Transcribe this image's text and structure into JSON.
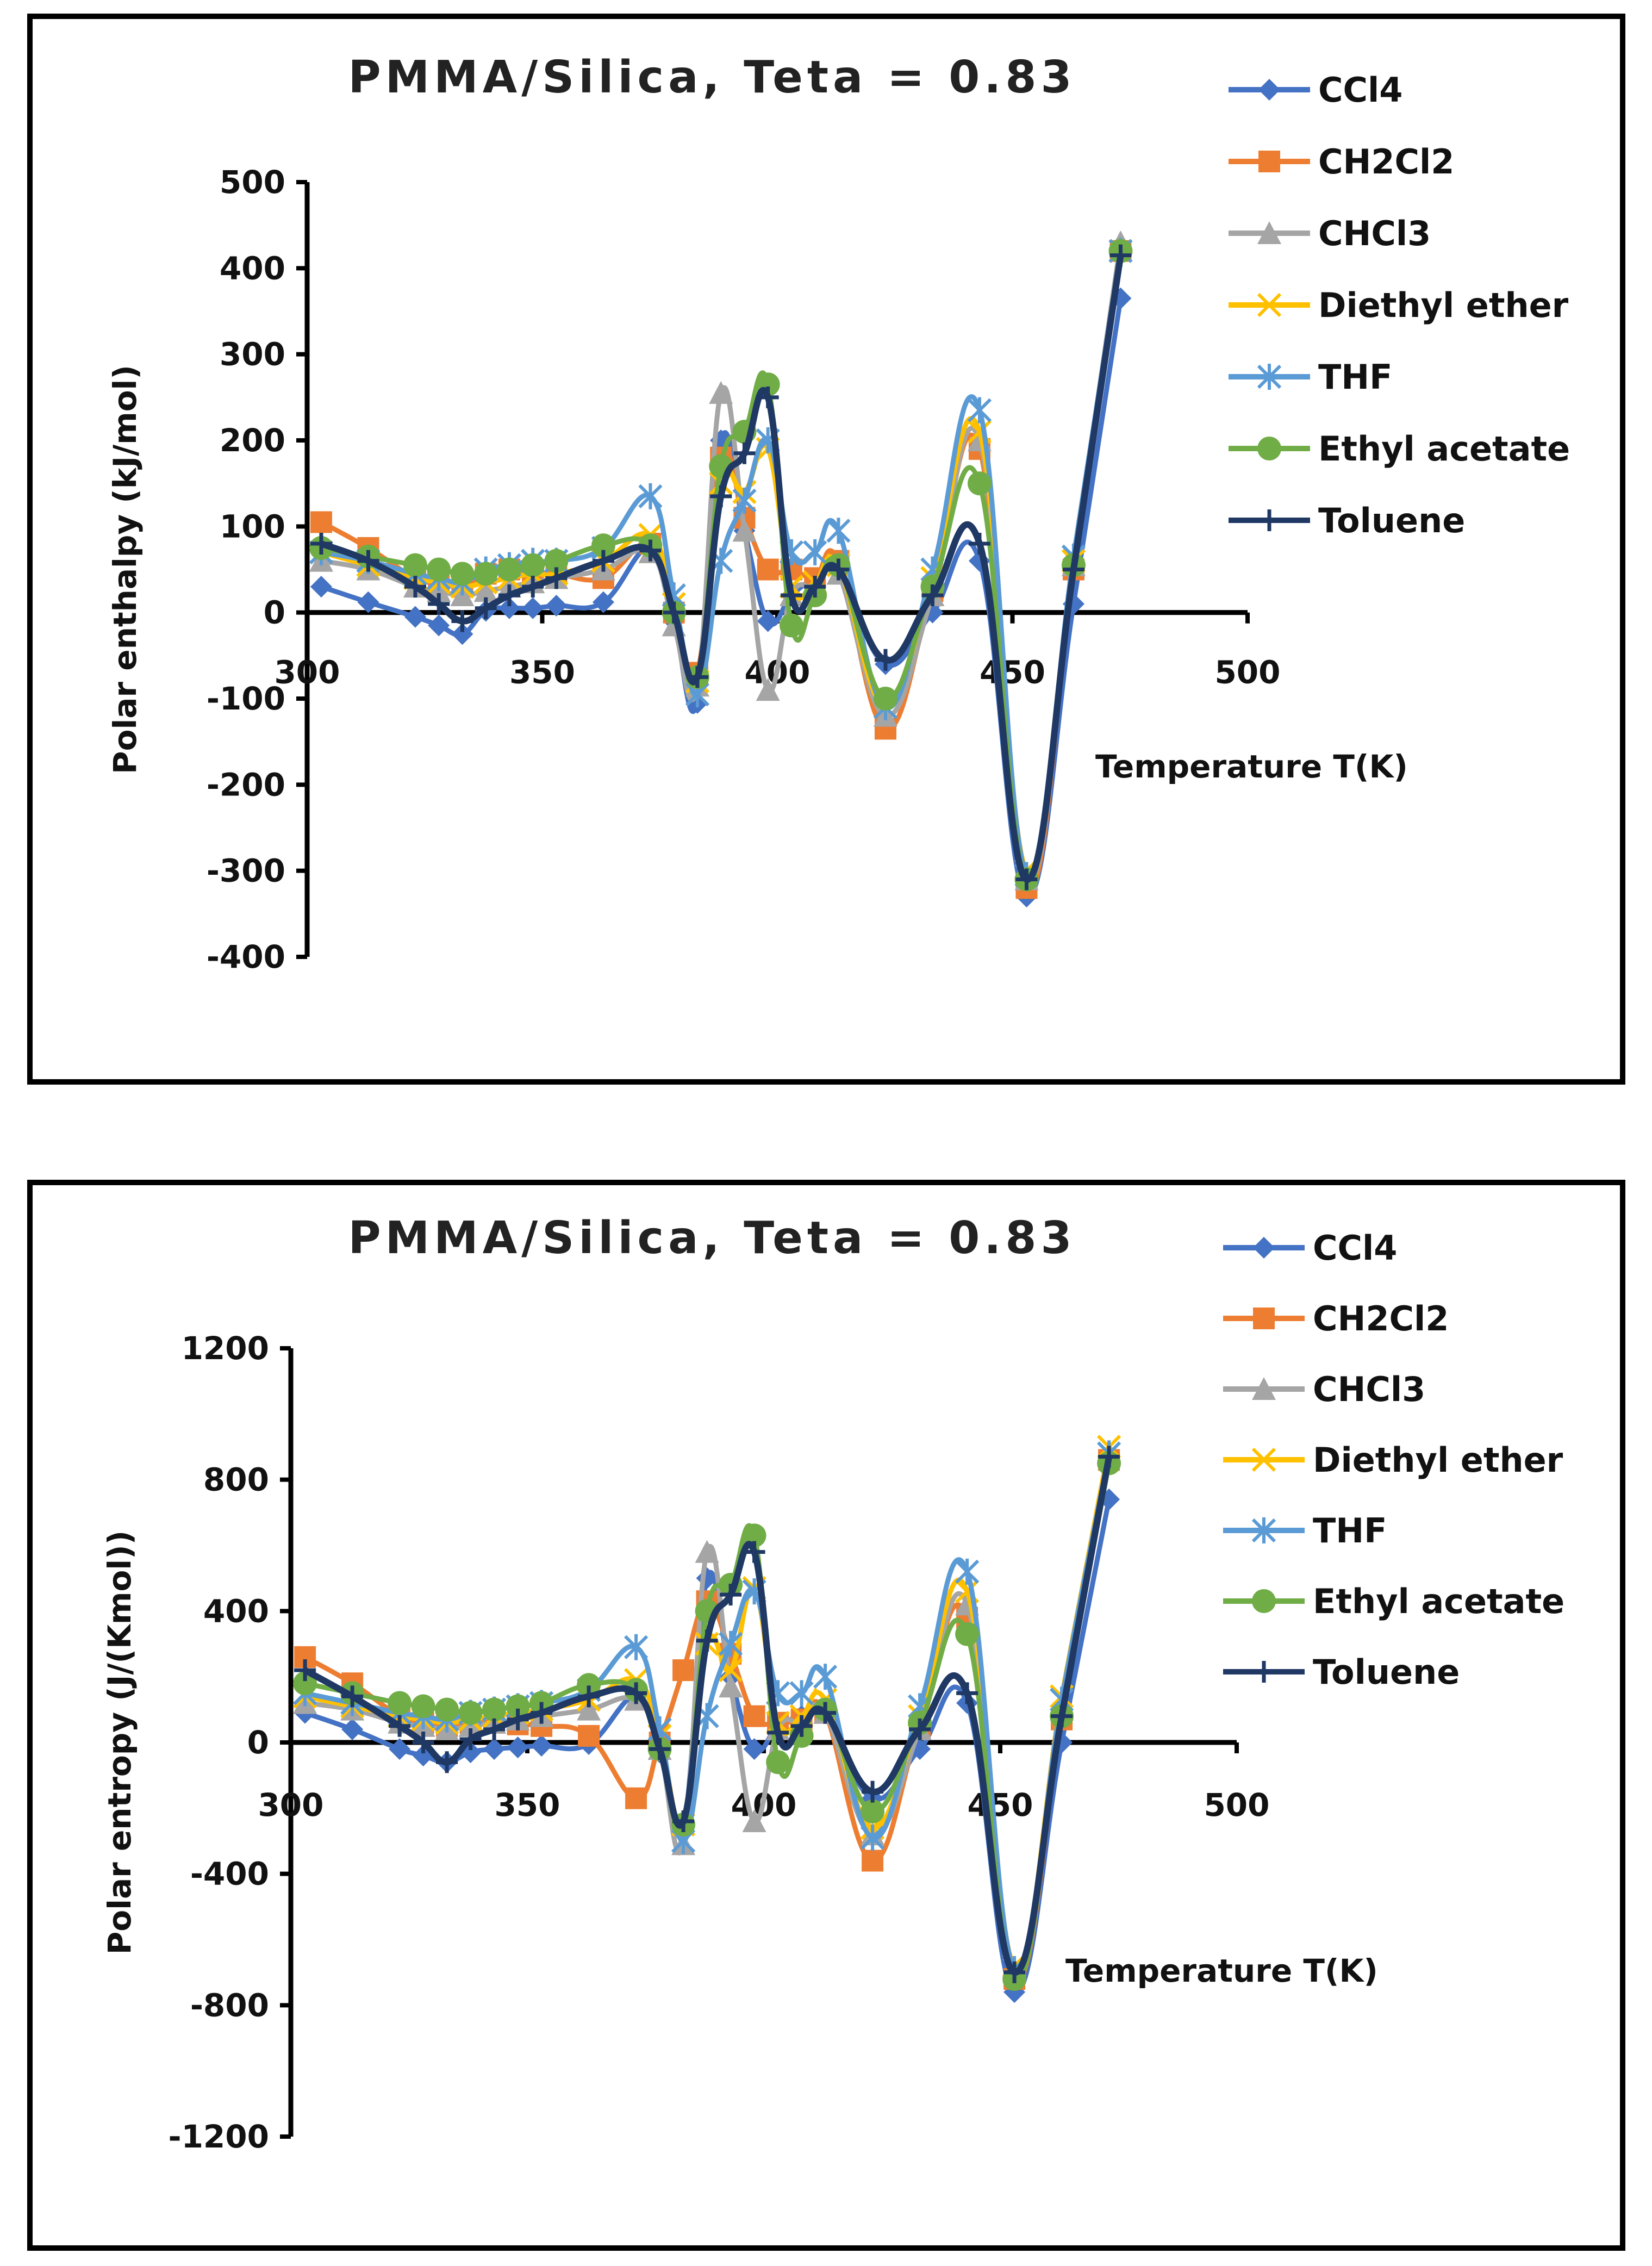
{
  "chart_data": [
    {
      "type": "line",
      "title": "PMMA/Silica, Teta = 0.83",
      "xlabel": "Temperature T(K)",
      "ylabel": "Polar enthalpy (kJ/mol)",
      "xlim": [
        300,
        500
      ],
      "ylim": [
        -400,
        500
      ],
      "x_ticks": [
        "300",
        "350",
        "400",
        "450",
        "500"
      ],
      "y_ticks": [
        "500",
        "400",
        "300",
        "200",
        "100",
        "0",
        "-100",
        "-200",
        "-300",
        "-400"
      ],
      "series": [
        {
          "name": "CCl4",
          "color": "#4472C4",
          "marker": "diamond",
          "x": [
            303,
            313,
            323,
            328,
            333,
            338,
            343,
            348,
            353,
            363,
            373,
            378,
            383,
            388,
            393,
            398,
            403,
            408,
            413,
            423,
            433,
            443,
            453,
            463,
            473
          ],
          "y": [
            30,
            12,
            -5,
            -15,
            -25,
            2,
            5,
            5,
            8,
            12,
            75,
            -10,
            -105,
            200,
            95,
            -10,
            20,
            40,
            50,
            -60,
            0,
            60,
            -330,
            10,
            365
          ]
        },
        {
          "name": "CH2Cl2",
          "color": "#ED7D31",
          "marker": "square",
          "x": [
            303,
            313,
            323,
            328,
            333,
            338,
            343,
            348,
            353,
            363,
            373,
            378,
            383,
            388,
            393,
            398,
            403,
            408,
            413,
            423,
            433,
            443,
            453,
            463,
            473
          ],
          "y": [
            105,
            75,
            40,
            35,
            30,
            45,
            50,
            45,
            45,
            40,
            80,
            0,
            -70,
            180,
            110,
            50,
            50,
            40,
            60,
            -135,
            25,
            190,
            -320,
            50,
            420
          ]
        },
        {
          "name": "CHCl3",
          "color": "#A5A5A5",
          "marker": "triangle",
          "x": [
            303,
            313,
            323,
            328,
            333,
            338,
            343,
            348,
            353,
            363,
            373,
            378,
            383,
            388,
            393,
            398,
            403,
            408,
            413,
            423,
            433,
            443,
            453,
            463,
            473
          ],
          "y": [
            60,
            50,
            30,
            25,
            20,
            25,
            30,
            35,
            40,
            50,
            70,
            -15,
            -85,
            255,
            95,
            -90,
            20,
            30,
            45,
            -120,
            20,
            200,
            -310,
            55,
            430
          ]
        },
        {
          "name": "Diethyl ether",
          "color": "#FFC000",
          "marker": "x",
          "x": [
            303,
            313,
            323,
            328,
            333,
            338,
            343,
            348,
            353,
            363,
            373,
            378,
            383,
            388,
            393,
            398,
            403,
            408,
            413,
            423,
            433,
            443,
            453,
            463,
            473
          ],
          "y": [
            70,
            55,
            40,
            35,
            30,
            35,
            40,
            45,
            45,
            60,
            90,
            10,
            -80,
            150,
            140,
            190,
            30,
            35,
            55,
            -110,
            40,
            210,
            -300,
            60,
            420
          ]
        },
        {
          "name": "THF",
          "color": "#5B9BD5",
          "marker": "asterisk",
          "x": [
            303,
            313,
            323,
            328,
            333,
            338,
            343,
            348,
            353,
            363,
            373,
            378,
            383,
            388,
            393,
            398,
            403,
            408,
            413,
            423,
            433,
            443,
            453,
            463,
            473
          ],
          "y": [
            70,
            60,
            45,
            40,
            35,
            50,
            55,
            60,
            60,
            75,
            135,
            20,
            -95,
            60,
            130,
            200,
            70,
            70,
            95,
            -110,
            50,
            235,
            -305,
            65,
            420
          ]
        },
        {
          "name": "Ethyl acetate",
          "color": "#70AD47",
          "marker": "circle",
          "x": [
            303,
            313,
            323,
            328,
            333,
            338,
            343,
            348,
            353,
            363,
            373,
            378,
            383,
            388,
            393,
            398,
            403,
            408,
            413,
            423,
            433,
            443,
            453,
            463,
            473
          ],
          "y": [
            75,
            65,
            55,
            50,
            45,
            45,
            50,
            55,
            60,
            78,
            78,
            0,
            -75,
            170,
            210,
            265,
            -15,
            20,
            55,
            -100,
            30,
            150,
            -310,
            55,
            420
          ]
        },
        {
          "name": "Toluene",
          "color": "#1F3864",
          "marker": "plus",
          "x": [
            303,
            313,
            323,
            328,
            333,
            338,
            343,
            348,
            353,
            363,
            373,
            378,
            383,
            388,
            393,
            398,
            403,
            408,
            413,
            423,
            433,
            443,
            453,
            463,
            473
          ],
          "y": [
            80,
            60,
            30,
            10,
            -10,
            5,
            20,
            30,
            40,
            60,
            72,
            0,
            -75,
            135,
            185,
            250,
            20,
            30,
            50,
            -55,
            20,
            80,
            -310,
            50,
            415
          ]
        }
      ]
    },
    {
      "type": "line",
      "title": "PMMA/Silica, Teta = 0.83",
      "xlabel": "Temperature T(K)",
      "ylabel": "Polar entropy (J/(Kmol))",
      "xlim": [
        300,
        500
      ],
      "ylim": [
        -1200,
        1200
      ],
      "x_ticks": [
        "300",
        "350",
        "400",
        "450",
        "500"
      ],
      "y_ticks": [
        "1200",
        "800",
        "400",
        "0",
        "-400",
        "-800",
        "-1200"
      ],
      "series": [
        {
          "name": "CCl4",
          "color": "#4472C4",
          "marker": "diamond",
          "x": [
            303,
            313,
            323,
            328,
            333,
            338,
            343,
            348,
            353,
            363,
            373,
            378,
            383,
            388,
            393,
            398,
            403,
            408,
            413,
            423,
            433,
            443,
            453,
            463,
            473
          ],
          "y": [
            90,
            40,
            -20,
            -40,
            -60,
            -30,
            -20,
            -15,
            -10,
            -5,
            140,
            -30,
            -260,
            500,
            200,
            -20,
            50,
            80,
            90,
            -170,
            -20,
            120,
            -760,
            0,
            740
          ]
        },
        {
          "name": "CH2Cl2",
          "color": "#ED7D31",
          "marker": "square",
          "x": [
            303,
            313,
            323,
            328,
            333,
            338,
            343,
            348,
            353,
            363,
            373,
            378,
            383,
            388,
            393,
            398,
            403,
            408,
            413,
            423,
            433,
            443,
            453,
            463,
            473
          ],
          "y": [
            260,
            180,
            80,
            60,
            50,
            60,
            60,
            55,
            50,
            20,
            -170,
            0,
            220,
            430,
            270,
            80,
            60,
            70,
            90,
            -360,
            50,
            380,
            -720,
            70,
            860
          ]
        },
        {
          "name": "CHCl3",
          "color": "#A5A5A5",
          "marker": "triangle",
          "x": [
            303,
            313,
            323,
            328,
            333,
            338,
            343,
            348,
            353,
            363,
            373,
            378,
            383,
            388,
            393,
            398,
            403,
            408,
            413,
            423,
            433,
            443,
            453,
            463,
            473
          ],
          "y": [
            120,
            100,
            60,
            50,
            40,
            50,
            60,
            70,
            80,
            100,
            130,
            -20,
            -310,
            580,
            170,
            -240,
            40,
            60,
            90,
            -280,
            40,
            420,
            -700,
            100,
            880
          ]
        },
        {
          "name": "Diethyl ether",
          "color": "#FFC000",
          "marker": "x",
          "x": [
            303,
            313,
            323,
            328,
            333,
            338,
            343,
            348,
            353,
            363,
            373,
            378,
            383,
            388,
            393,
            398,
            403,
            408,
            413,
            423,
            433,
            443,
            453,
            463,
            473
          ],
          "y": [
            140,
            110,
            80,
            70,
            60,
            70,
            80,
            90,
            100,
            130,
            190,
            20,
            -250,
            300,
            220,
            470,
            60,
            80,
            130,
            -260,
            80,
            460,
            -680,
            140,
            900
          ]
        },
        {
          "name": "THF",
          "color": "#5B9BD5",
          "marker": "asterisk",
          "x": [
            303,
            313,
            323,
            328,
            333,
            338,
            343,
            348,
            353,
            363,
            373,
            378,
            383,
            388,
            393,
            398,
            403,
            408,
            413,
            423,
            433,
            443,
            453,
            463,
            473
          ],
          "y": [
            150,
            120,
            90,
            80,
            70,
            90,
            100,
            110,
            120,
            160,
            290,
            40,
            -300,
            80,
            300,
            460,
            150,
            150,
            200,
            -290,
            110,
            520,
            -690,
            130,
            880
          ]
        },
        {
          "name": "Ethyl acetate",
          "color": "#70AD47",
          "marker": "circle",
          "x": [
            303,
            313,
            323,
            328,
            333,
            338,
            343,
            348,
            353,
            363,
            373,
            378,
            383,
            388,
            393,
            398,
            403,
            408,
            413,
            423,
            433,
            443,
            453,
            463,
            473
          ],
          "y": [
            180,
            150,
            120,
            110,
            100,
            90,
            100,
            110,
            120,
            175,
            160,
            -20,
            -250,
            400,
            480,
            630,
            -60,
            20,
            100,
            -210,
            60,
            330,
            -720,
            80,
            850
          ]
        },
        {
          "name": "Toluene",
          "color": "#1F3864",
          "marker": "plus",
          "x": [
            303,
            313,
            323,
            328,
            333,
            338,
            343,
            348,
            353,
            363,
            373,
            378,
            383,
            388,
            393,
            398,
            403,
            408,
            413,
            423,
            433,
            443,
            453,
            463,
            473
          ],
          "y": [
            220,
            140,
            50,
            0,
            -60,
            10,
            40,
            70,
            90,
            140,
            150,
            -20,
            -240,
            310,
            450,
            580,
            30,
            50,
            90,
            -150,
            40,
            150,
            -700,
            80,
            870
          ]
        }
      ]
    }
  ]
}
